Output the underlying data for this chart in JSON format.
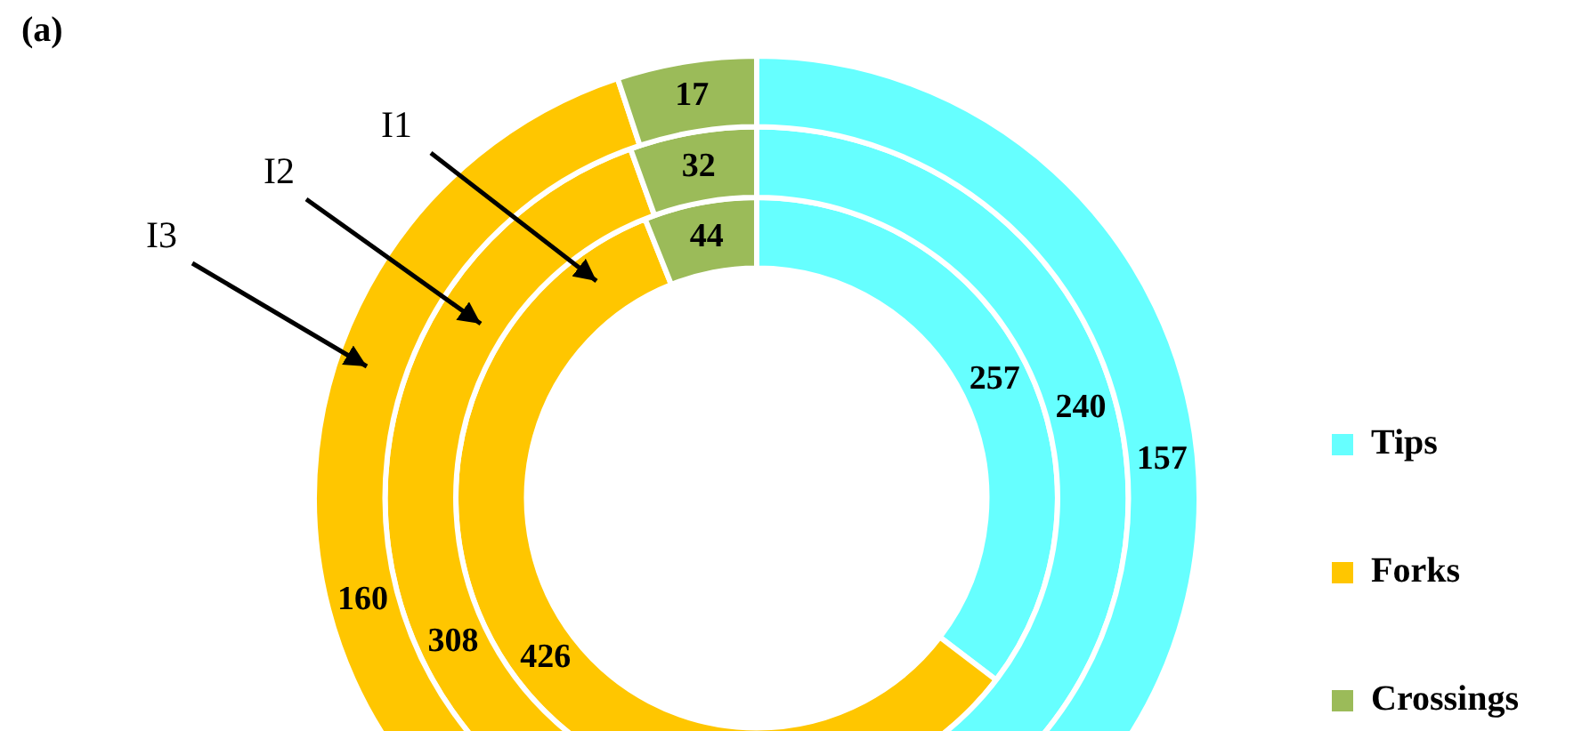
{
  "chart_data": {
    "type": "donut",
    "title": "(a)",
    "categories": [
      "Tips",
      "Forks",
      "Crossings"
    ],
    "colors": [
      "#66ffff",
      "#ffc600",
      "#9bbb59"
    ],
    "series": [
      {
        "values": [
          257,
          426,
          44
        ]
      },
      {
        "values": [
          240,
          308,
          32
        ]
      },
      {
        "values": [
          157,
          160,
          17
        ]
      }
    ],
    "annotations": [
      "I1",
      "I2",
      "I3"
    ],
    "data_labels": true,
    "legend": "right"
  }
}
